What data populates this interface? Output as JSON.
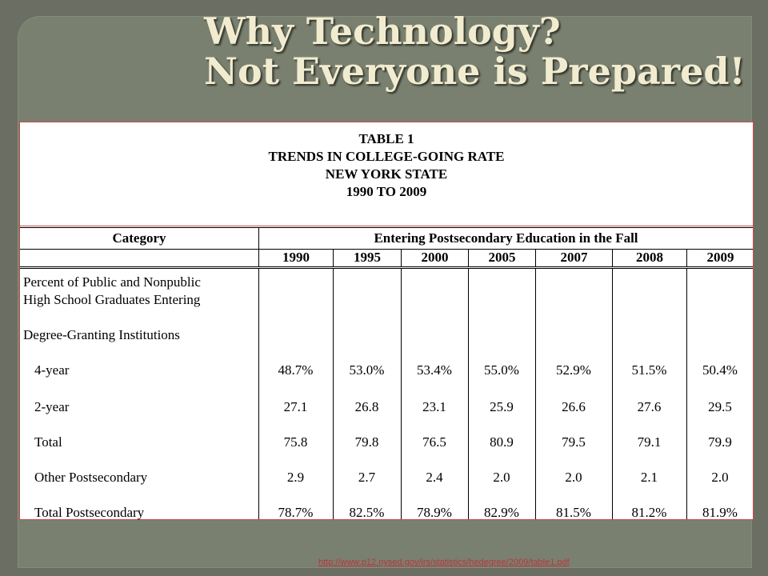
{
  "title": {
    "line1": "Why Technology?",
    "line2": "Not Everyone is Prepared!"
  },
  "table": {
    "heading": [
      "TABLE 1",
      "TRENDS IN COLLEGE-GOING RATE",
      "NEW YORK STATE",
      "1990 TO 2009"
    ],
    "category_header": "Category",
    "entering_header": "Entering Postsecondary Education in the Fall",
    "years": [
      "1990",
      "1995",
      "2000",
      "2005",
      "2007",
      "2008",
      "2009"
    ],
    "description_lines": [
      "Percent of Public and Nonpublic",
      "High School Graduates Entering",
      "Degree-Granting Institutions"
    ],
    "rows": [
      {
        "label": "4-year",
        "values": [
          "48.7%",
          "53.0%",
          "53.4%",
          "55.0%",
          "52.9%",
          "51.5%",
          "50.4%"
        ]
      },
      {
        "label": "2-year",
        "values": [
          "27.1",
          "26.8",
          "23.1",
          "25.9",
          "26.6",
          "27.6",
          "29.5"
        ]
      },
      {
        "label": "Total",
        "values": [
          "75.8",
          "79.8",
          "76.5",
          "80.9",
          "79.5",
          "79.1",
          "79.9"
        ]
      },
      {
        "label": "Other Postsecondary",
        "values": [
          "2.9",
          "2.7",
          "2.4",
          "2.0",
          "2.0",
          "2.1",
          "2.0"
        ]
      },
      {
        "label": "Total Postsecondary",
        "values": [
          "78.7%",
          "82.5%",
          "78.9%",
          "82.9%",
          "81.5%",
          "81.2%",
          "81.9%"
        ]
      }
    ]
  },
  "source_link": "http://www.p12.nysed.gov/irs/statistics/hedegree/2009/table1.pdf"
}
